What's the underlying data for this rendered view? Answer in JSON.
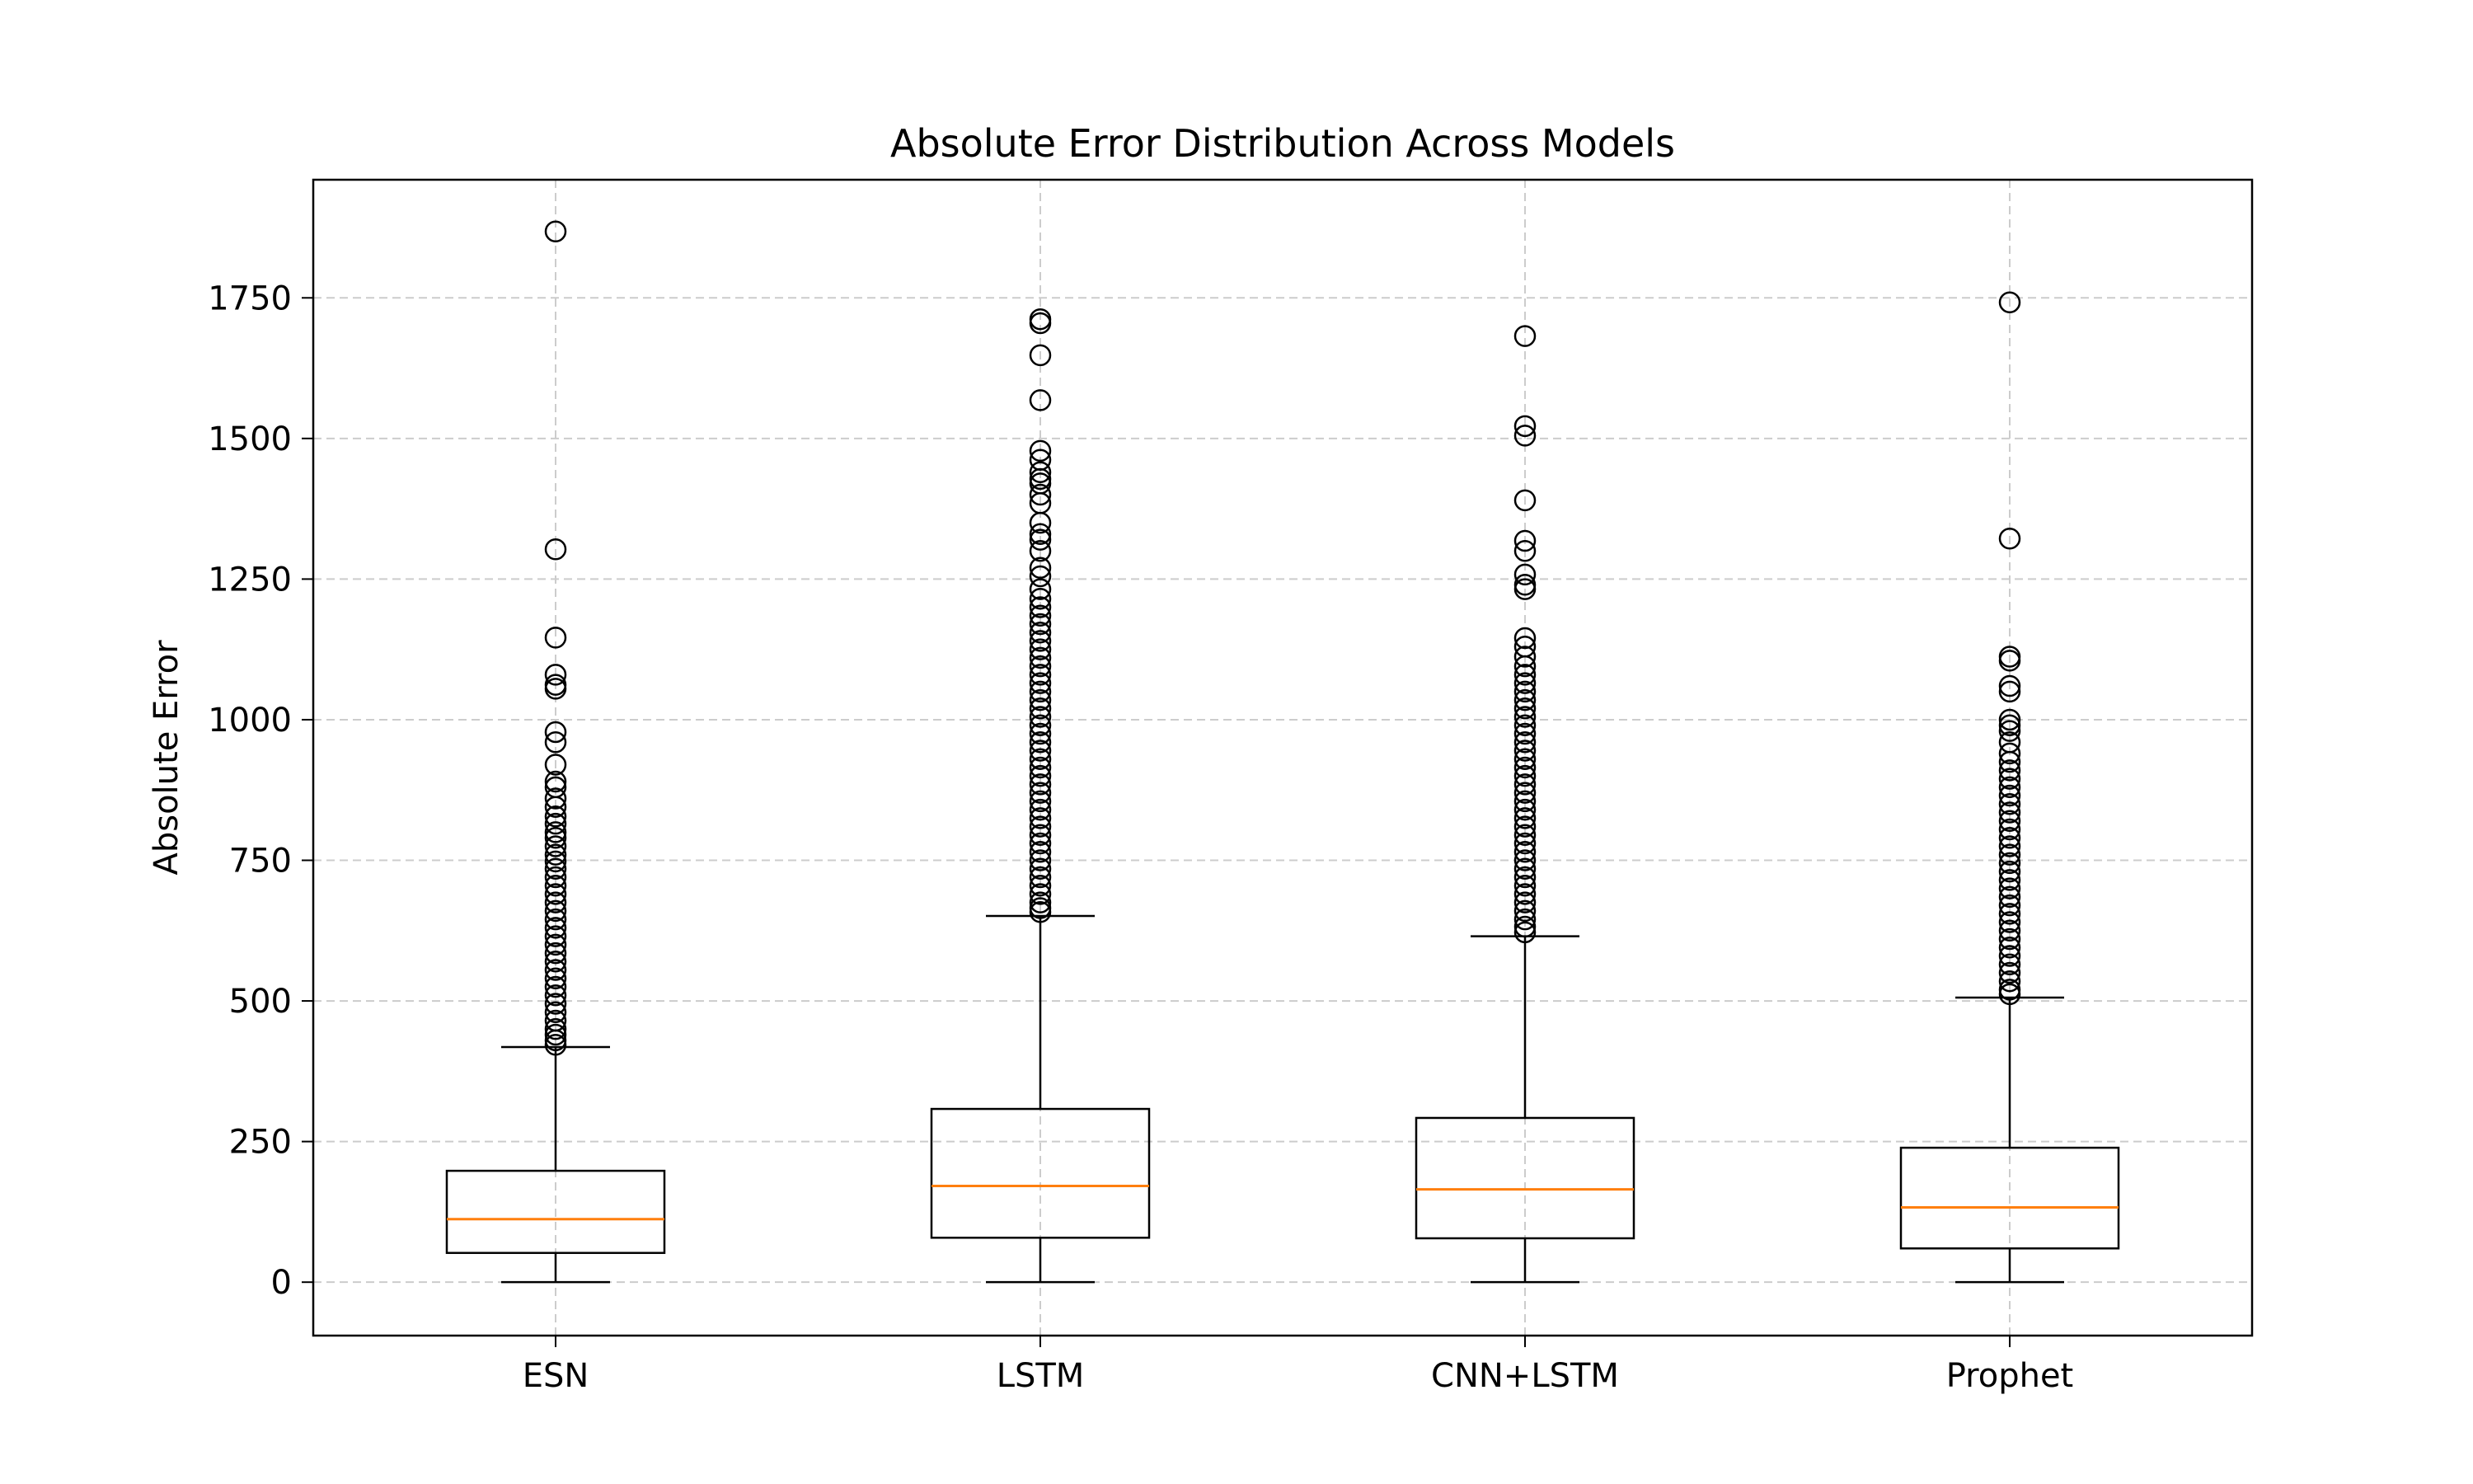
{
  "chart_data": {
    "type": "box",
    "title": "Absolute Error Distribution Across Models",
    "xlabel": "",
    "ylabel": "Absolute Error",
    "ylim": [
      -95,
      1960
    ],
    "yticks": [
      0,
      250,
      500,
      750,
      1000,
      1250,
      1500,
      1750
    ],
    "ytick_labels": [
      "0",
      "250",
      "500",
      "750",
      "1000",
      "1250",
      "1500",
      "1750"
    ],
    "grid": true,
    "categories": [
      "ESN",
      "LSTM",
      "CNN+LSTM",
      "Prophet"
    ],
    "boxes": [
      {
        "name": "ESN",
        "whisker_low": 0,
        "q1": 52,
        "median": 112,
        "q3": 198,
        "whisker_high": 418,
        "outliers": [
          1868,
          1303,
          1146,
          1080,
          1062,
          1055,
          978,
          960,
          920,
          890,
          880,
          860,
          845,
          828,
          815,
          800,
          790,
          775,
          760,
          748,
          735,
          720,
          705,
          690,
          675,
          660,
          645,
          630,
          615,
          600,
          585,
          570,
          555,
          540,
          525,
          510,
          495,
          480,
          465,
          450,
          440,
          430,
          422
        ]
      },
      {
        "name": "LSTM",
        "whisker_low": 0,
        "q1": 79,
        "median": 171,
        "q3": 308,
        "whisker_high": 651,
        "outliers": [
          1712,
          1705,
          1648,
          1568,
          1478,
          1462,
          1440,
          1428,
          1420,
          1400,
          1385,
          1350,
          1330,
          1320,
          1300,
          1270,
          1255,
          1232,
          1215,
          1200,
          1185,
          1170,
          1155,
          1140,
          1125,
          1110,
          1095,
          1080,
          1065,
          1050,
          1035,
          1020,
          1005,
          990,
          975,
          960,
          945,
          930,
          915,
          900,
          885,
          870,
          855,
          840,
          825,
          810,
          795,
          780,
          765,
          750,
          735,
          720,
          705,
          690,
          675,
          665,
          658
        ]
      },
      {
        "name": "CNN+LSTM",
        "whisker_low": 0,
        "q1": 78,
        "median": 165,
        "q3": 292,
        "whisker_high": 615,
        "outliers": [
          1682,
          1522,
          1505,
          1390,
          1318,
          1300,
          1258,
          1240,
          1232,
          1145,
          1130,
          1112,
          1095,
          1080,
          1065,
          1050,
          1035,
          1020,
          1005,
          990,
          975,
          960,
          945,
          930,
          915,
          900,
          885,
          870,
          855,
          840,
          825,
          810,
          795,
          780,
          765,
          750,
          735,
          720,
          705,
          690,
          675,
          660,
          645,
          632,
          622
        ]
      },
      {
        "name": "Prophet",
        "whisker_low": 0,
        "q1": 60,
        "median": 133,
        "q3": 239,
        "whisker_high": 506,
        "outliers": [
          1742,
          1322,
          1112,
          1105,
          1060,
          1050,
          1000,
          990,
          980,
          960,
          940,
          925,
          910,
          895,
          880,
          865,
          850,
          835,
          820,
          805,
          790,
          775,
          760,
          745,
          730,
          715,
          700,
          685,
          670,
          655,
          640,
          625,
          610,
          595,
          580,
          565,
          550,
          535,
          520,
          512
        ]
      }
    ],
    "colors": {
      "box": "#000000",
      "median": "#ff7f0e",
      "grid": "#cccccc",
      "outlier_edge": "#000000"
    }
  }
}
